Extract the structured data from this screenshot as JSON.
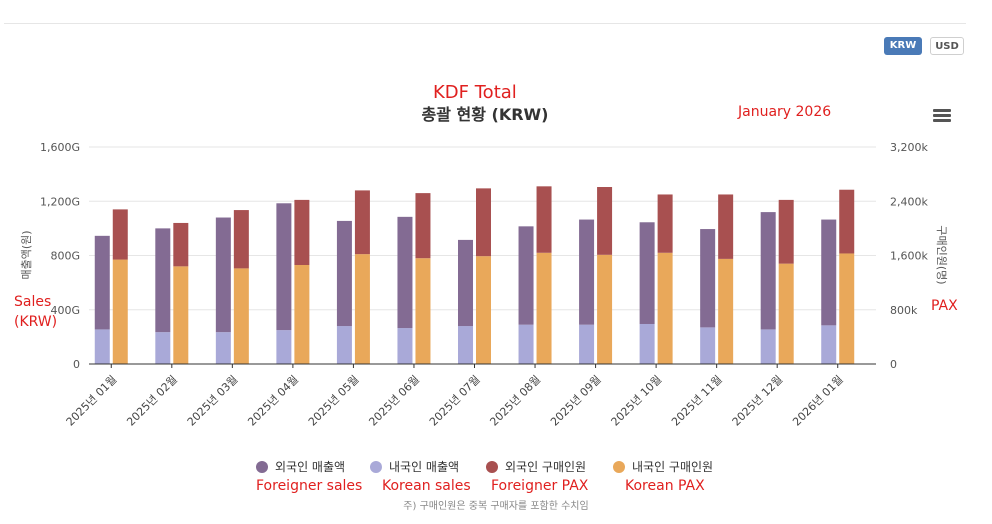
{
  "currency_toggle": {
    "krw": "KRW",
    "usd": "USD"
  },
  "annotations": {
    "kdf_total": "KDF Total",
    "january": "January 2026",
    "sales_line1": "Sales",
    "sales_line2": "(KRW)",
    "pax": "PAX",
    "foreigner_sales": "Foreigner sales",
    "korean_sales": "Korean sales",
    "foreigner_pax": "Foreigner PAX",
    "korean_pax": "Korean PAX"
  },
  "footnote": "주) 구매인원은 중복 구매자를 포함한 수치임",
  "chart_data": {
    "type": "bar",
    "title": "총괄 현황 (KRW)",
    "ylabel": "매출액(원)",
    "y2label": "구매인원(명)",
    "ylim": [
      0,
      1600
    ],
    "y2lim": [
      0,
      3200
    ],
    "yticks": [
      "0",
      "400G",
      "800G",
      "1,200G",
      "1,600G"
    ],
    "y2ticks": [
      "0",
      "800k",
      "1,600k",
      "2,400k",
      "3,200k"
    ],
    "categories": [
      "2025년 01월",
      "2025년 02월",
      "2025년 03월",
      "2025년 04월",
      "2025년 05월",
      "2025년 06월",
      "2025년 07월",
      "2025년 08월",
      "2025년 09월",
      "2025년 10월",
      "2025년 11월",
      "2025년 12월",
      "2026년 01월"
    ],
    "series": [
      {
        "name": "외국인 매출액",
        "stack": "sales",
        "axis": "left",
        "color": "#836b93",
        "values": [
          690,
          765,
          845,
          935,
          775,
          820,
          635,
          725,
          775,
          750,
          725,
          865,
          780
        ]
      },
      {
        "name": "내국인 매출액",
        "stack": "sales",
        "axis": "left",
        "color": "#a9a9d8",
        "values": [
          255,
          235,
          235,
          250,
          280,
          265,
          280,
          290,
          290,
          295,
          270,
          255,
          285
        ]
      },
      {
        "name": "외국인 구매인원",
        "stack": "pax",
        "axis": "right",
        "color": "#a85050",
        "values": [
          740,
          640,
          860,
          960,
          940,
          960,
          1000,
          980,
          1000,
          860,
          950,
          940,
          940
        ]
      },
      {
        "name": "내국인 구매인원",
        "stack": "pax",
        "axis": "right",
        "color": "#e9a85a",
        "values": [
          1540,
          1440,
          1410,
          1460,
          1620,
          1560,
          1590,
          1640,
          1610,
          1640,
          1550,
          1480,
          1630
        ]
      }
    ],
    "legend_order": [
      0,
      1,
      2,
      3
    ],
    "legend_position": "bottom"
  }
}
